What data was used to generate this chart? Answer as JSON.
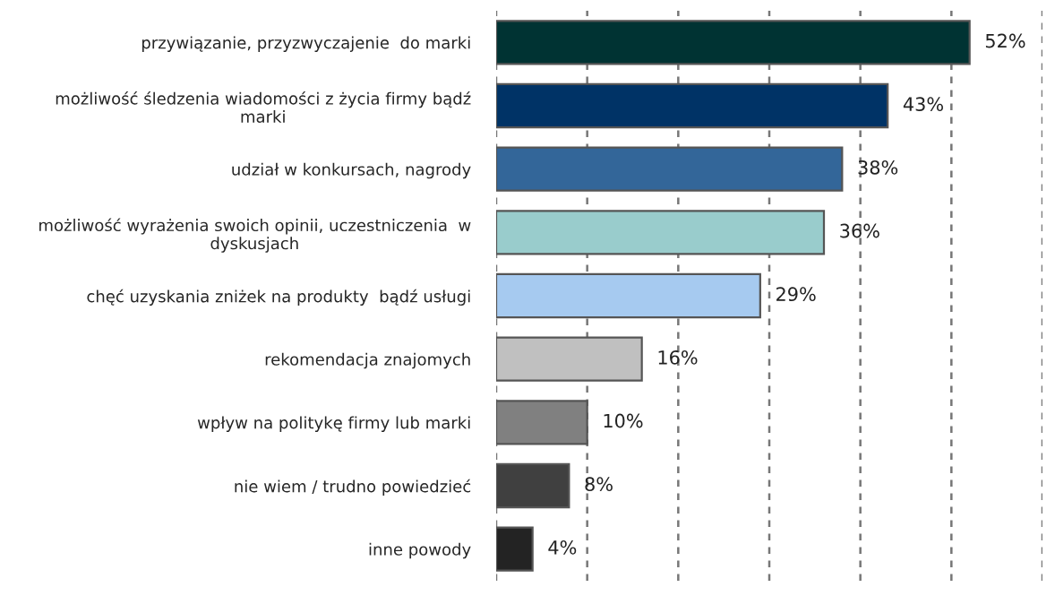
{
  "chart_data": {
    "type": "bar",
    "orientation": "horizontal",
    "categories": [
      "przywiązanie, przyzwyczajenie  do marki",
      "możliwość śledzenia wiadomości z życia firmy bądź\nmarki",
      "udział w konkursach, nagrody",
      "możliwość wyrażenia swoich opinii, uczestniczenia  w\ndyskusjach",
      "chęć uzyskania zniżek na produkty  bądź usługi",
      "rekomendacja znajomych",
      "wpływ na politykę firmy lub marki",
      "nie wiem / trudno powiedzieć",
      "inne powody"
    ],
    "values": [
      52,
      43,
      38,
      36,
      29,
      16,
      10,
      8,
      4
    ],
    "value_labels": [
      "52%",
      "43%",
      "38%",
      "36%",
      "29%",
      "16%",
      "10%",
      "8%",
      "4%"
    ],
    "colors": [
      "#003333",
      "#003366",
      "#336699",
      "#99cccc",
      "#a6caf0",
      "#c0c0c0",
      "#808080",
      "#404040",
      "#232323"
    ],
    "xlim": [
      0,
      60
    ],
    "xticks": [
      {
        "value": 0,
        "label": null
      },
      {
        "value": 10,
        "label": null
      },
      {
        "value": 20,
        "label": null
      },
      {
        "value": 30,
        "label": null
      },
      {
        "value": 40,
        "label": null
      },
      {
        "value": 50,
        "label": null
      },
      {
        "value": 60,
        "label": null
      }
    ],
    "grid": "x",
    "tick_labels": "y"
  }
}
